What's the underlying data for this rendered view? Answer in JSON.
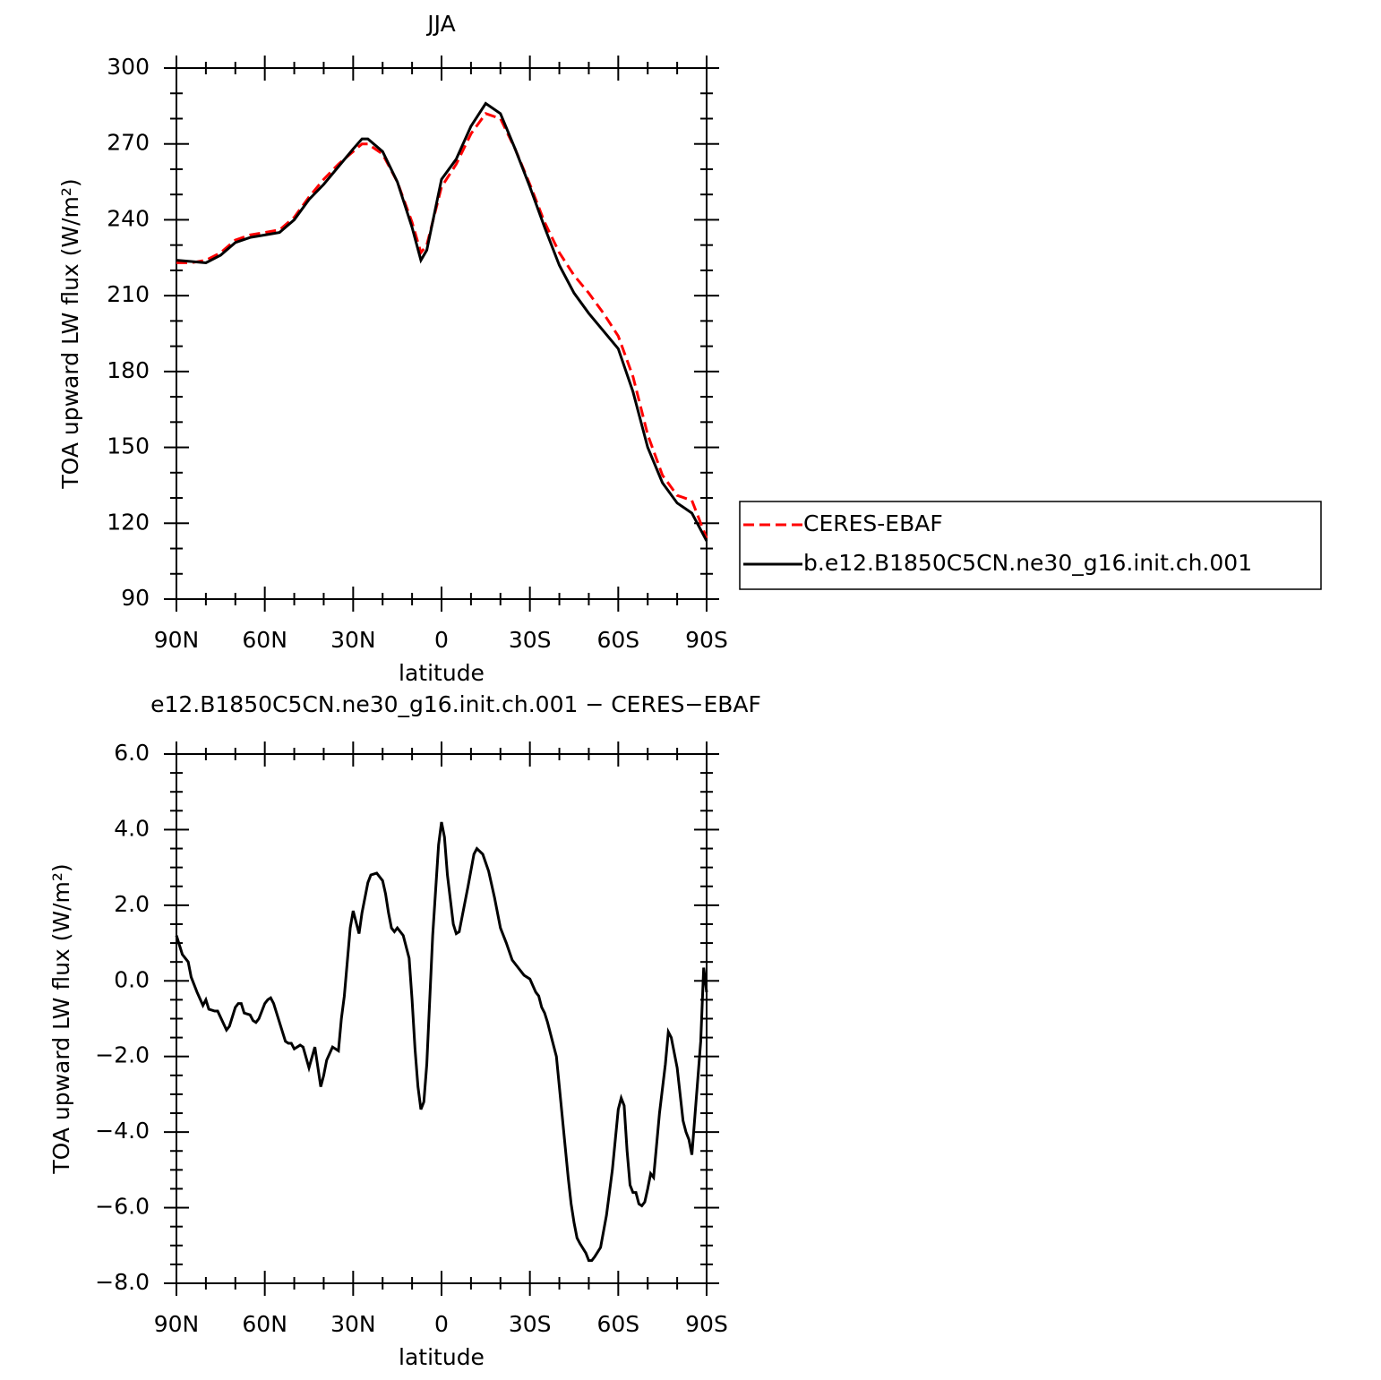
{
  "chart_data": [
    {
      "type": "line",
      "title": "JJA",
      "xlabel": "latitude",
      "ylabel": "TOA upward LW flux (W/m²)",
      "x": [
        90,
        85,
        80,
        75,
        70,
        65,
        60,
        55,
        50,
        45,
        40,
        35,
        30,
        27,
        25,
        20,
        15,
        10,
        7,
        5,
        0,
        -5,
        -10,
        -15,
        -20,
        -25,
        -30,
        -35,
        -40,
        -45,
        -50,
        -55,
        -60,
        -65,
        -70,
        -75,
        -80,
        -85,
        -90
      ],
      "xlim": [
        90,
        -90
      ],
      "xticks": [
        {
          "value": 90,
          "label": "90N"
        },
        {
          "value": 60,
          "label": "60N"
        },
        {
          "value": 30,
          "label": "30N"
        },
        0,
        {
          "value": -30,
          "label": "30S"
        },
        {
          "value": -60,
          "label": "60S"
        },
        {
          "value": -90,
          "label": "90S"
        }
      ],
      "ylim": [
        90,
        300
      ],
      "yticks": [
        90,
        120,
        150,
        180,
        210,
        240,
        270,
        300
      ],
      "legend": "right",
      "series": [
        {
          "name": "CERES-EBAF",
          "color": "#ff0000",
          "linestyle": "dashed",
          "values": [
            223,
            223,
            224,
            227,
            232,
            234,
            235,
            236,
            241,
            249,
            256,
            262,
            267,
            270,
            270,
            266,
            255,
            239,
            227,
            230,
            253,
            262,
            274,
            282,
            280,
            268,
            254,
            239,
            227,
            218,
            211,
            203,
            194,
            178,
            155,
            139,
            131,
            129,
            114
          ]
        },
        {
          "name": "b.e12.B1850C5CN.ne30_g16.init.ch.001",
          "color": "#000000",
          "linestyle": "solid",
          "values": [
            224,
            223.5,
            223,
            226,
            231,
            233,
            234,
            235,
            240,
            248,
            254,
            261,
            268,
            272,
            272,
            267,
            255,
            237,
            224,
            228,
            256,
            264,
            277,
            286,
            282,
            268,
            253,
            237,
            222,
            211,
            203,
            196,
            189,
            172,
            150,
            136,
            128,
            124,
            113
          ]
        }
      ]
    },
    {
      "type": "line",
      "title": "e12.B1850C5CN.ne30_g16.init.ch.001 − CERES−EBAF",
      "xlabel": "latitude",
      "ylabel": "TOA upward LW flux (W/m²)",
      "x": [
        90,
        88,
        86,
        85,
        83,
        81,
        80,
        79,
        77,
        76,
        73,
        72,
        70,
        69,
        68,
        67,
        65,
        64,
        63,
        62,
        60,
        59,
        58,
        57,
        55,
        53,
        52,
        51,
        50,
        48,
        47,
        45,
        43,
        41,
        40,
        39,
        37,
        35,
        34,
        33,
        31,
        30,
        28,
        27,
        25,
        24,
        22,
        20,
        19,
        18,
        17,
        16,
        15,
        13,
        11,
        10,
        9,
        8,
        7,
        6,
        5,
        3,
        1,
        0,
        -1,
        -2,
        -4,
        -5,
        -6,
        -7,
        -9,
        -11,
        -12,
        -14,
        -16,
        -18,
        -20,
        -22,
        -24,
        -26,
        -28,
        -30,
        -32,
        -33,
        -34,
        -35,
        -36,
        -37,
        -39,
        -40,
        -41,
        -42,
        -43,
        -44,
        -45,
        -46,
        -47,
        -49,
        -50,
        -51,
        -52,
        -54,
        -56,
        -58,
        -59,
        -60,
        -61,
        -62,
        -63,
        -64,
        -65,
        -66,
        -67,
        -68,
        -69,
        -70,
        -71,
        -72,
        -74,
        -76,
        -77,
        -78,
        -80,
        -82,
        -83,
        -84,
        -85,
        -86,
        -88,
        -89,
        -90
      ],
      "xlim": [
        90,
        -90
      ],
      "xticks": [
        {
          "value": 90,
          "label": "90N"
        },
        {
          "value": 60,
          "label": "60N"
        },
        {
          "value": 30,
          "label": "30N"
        },
        0,
        {
          "value": -30,
          "label": "30S"
        },
        {
          "value": -60,
          "label": "60S"
        },
        {
          "value": -90,
          "label": "90S"
        }
      ],
      "ylim": [
        -8,
        6
      ],
      "yticks": [
        {
          "value": -8,
          "label": "−8.0"
        },
        {
          "value": -6,
          "label": "−6.0"
        },
        {
          "value": -4,
          "label": "−4.0"
        },
        {
          "value": -2,
          "label": "−2.0"
        },
        {
          "value": 0,
          "label": "0.0"
        },
        {
          "value": 2,
          "label": "2.0"
        },
        {
          "value": 4,
          "label": "4.0"
        },
        {
          "value": 6,
          "label": "6.0"
        }
      ],
      "series": [
        {
          "color": "#000000",
          "linestyle": "solid",
          "values": [
            1.2,
            0.7,
            0.5,
            0.1,
            -0.3,
            -0.65,
            -0.5,
            -0.75,
            -0.8,
            -0.8,
            -1.3,
            -1.2,
            -0.7,
            -0.6,
            -0.6,
            -0.85,
            -0.9,
            -1.05,
            -1.1,
            -1.0,
            -0.6,
            -0.5,
            -0.45,
            -0.6,
            -1.1,
            -1.6,
            -1.65,
            -1.65,
            -1.8,
            -1.7,
            -1.75,
            -2.3,
            -1.75,
            -2.8,
            -2.5,
            -2.1,
            -1.75,
            -1.85,
            -1.0,
            -0.4,
            1.4,
            1.85,
            1.25,
            1.8,
            2.6,
            2.8,
            2.85,
            2.65,
            2.3,
            1.8,
            1.4,
            1.3,
            1.4,
            1.2,
            0.6,
            -0.5,
            -1.8,
            -2.8,
            -3.4,
            -3.2,
            -2.2,
            1.2,
            3.6,
            4.2,
            3.8,
            2.8,
            1.5,
            1.25,
            1.3,
            1.7,
            2.5,
            3.35,
            3.5,
            3.35,
            2.9,
            2.2,
            1.4,
            1.0,
            0.55,
            0.35,
            0.15,
            0.05,
            -0.3,
            -0.4,
            -0.7,
            -0.85,
            -1.1,
            -1.4,
            -2.0,
            -2.8,
            -3.6,
            -4.4,
            -5.2,
            -5.9,
            -6.4,
            -6.8,
            -6.95,
            -7.2,
            -7.4,
            -7.4,
            -7.3,
            -7.05,
            -6.2,
            -5.0,
            -4.2,
            -3.4,
            -3.1,
            -3.3,
            -4.5,
            -5.4,
            -5.6,
            -5.6,
            -5.9,
            -5.95,
            -5.85,
            -5.5,
            -5.1,
            -5.2,
            -3.5,
            -2.2,
            -1.35,
            -1.5,
            -2.3,
            -3.7,
            -4.0,
            -4.2,
            -4.6,
            -3.6,
            -1.6,
            0.35,
            -0.3
          ]
        }
      ]
    }
  ]
}
